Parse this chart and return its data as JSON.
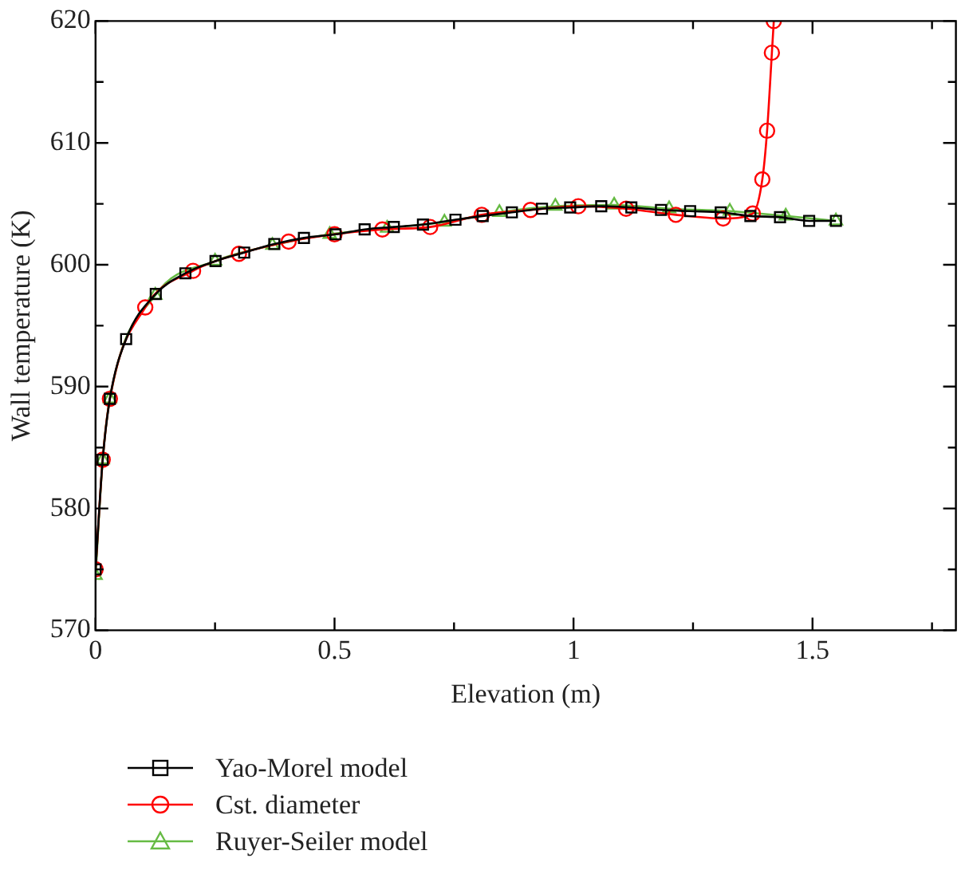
{
  "chart_data": {
    "type": "line",
    "xlabel": "Elevation (m)",
    "ylabel": "Wall temperature (K)",
    "xlim": [
      0,
      1.8
    ],
    "xticks": [
      0,
      {
        "value": 0.25,
        "label": null
      },
      0.5,
      {
        "value": 0.75,
        "label": null
      },
      1,
      {
        "value": 1.25,
        "label": null
      },
      1.5,
      {
        "value": 1.75,
        "label": null
      }
    ],
    "ylim": [
      570,
      620
    ],
    "yticks": [
      570,
      {
        "value": 575,
        "label": null
      },
      580,
      {
        "value": 585,
        "label": null
      },
      590,
      {
        "value": 595,
        "label": null
      },
      600,
      {
        "value": 605,
        "label": null
      },
      610,
      {
        "value": 615,
        "label": null
      },
      620
    ],
    "grid": false,
    "legend": "bottom",
    "line_style": "solid",
    "series": [
      {
        "name": "Yao-Morel model",
        "color": "#000000",
        "marker": "square",
        "x": [
          0,
          0.015,
          0.03,
          0.064,
          0.126,
          0.188,
          0.251,
          0.311,
          0.374,
          0.436,
          0.502,
          0.563,
          0.624,
          0.685,
          0.753,
          0.81,
          0.871,
          0.934,
          0.993,
          1.058,
          1.121,
          1.183,
          1.244,
          1.308,
          1.37,
          1.432,
          1.493,
          1.549
        ],
        "values": [
          575,
          584,
          589,
          593.9,
          597.6,
          599.3,
          600.3,
          601.0,
          601.7,
          602.2,
          602.5,
          602.9,
          603.1,
          603.3,
          603.7,
          604.0,
          604.3,
          604.6,
          604.7,
          604.8,
          604.7,
          604.5,
          604.4,
          604.3,
          604.0,
          603.9,
          603.6,
          603.6
        ]
      },
      {
        "name": "Cst. diameter",
        "color": "#ff0000",
        "marker": "circle",
        "x": [
          0,
          0.015,
          0.03,
          0.104,
          0.204,
          0.3,
          0.404,
          0.5,
          0.6,
          0.7,
          0.808,
          0.91,
          1.01,
          1.11,
          1.214,
          1.313,
          1.375,
          1.395,
          1.405,
          1.415,
          1.419
        ],
        "values": [
          575,
          584,
          589,
          596.5,
          599.5,
          600.9,
          601.9,
          602.5,
          602.9,
          603.1,
          604.1,
          604.5,
          604.8,
          604.6,
          604.1,
          603.8,
          604.2,
          607,
          611,
          617.4,
          620
        ]
      },
      {
        "name": "Ruyer-Seiler model",
        "color": "#66bb44",
        "marker": "triangle",
        "x": [
          0,
          0.015,
          0.03,
          0.125,
          0.25,
          0.37,
          0.49,
          0.61,
          0.73,
          0.845,
          0.962,
          1.085,
          1.2,
          1.327,
          1.444,
          1.549
        ],
        "values": [
          574.5,
          584,
          589,
          597.5,
          600.3,
          601.6,
          602.5,
          603.0,
          603.5,
          604.3,
          604.8,
          604.9,
          604.6,
          604.4,
          604.0,
          603.6
        ]
      }
    ]
  }
}
